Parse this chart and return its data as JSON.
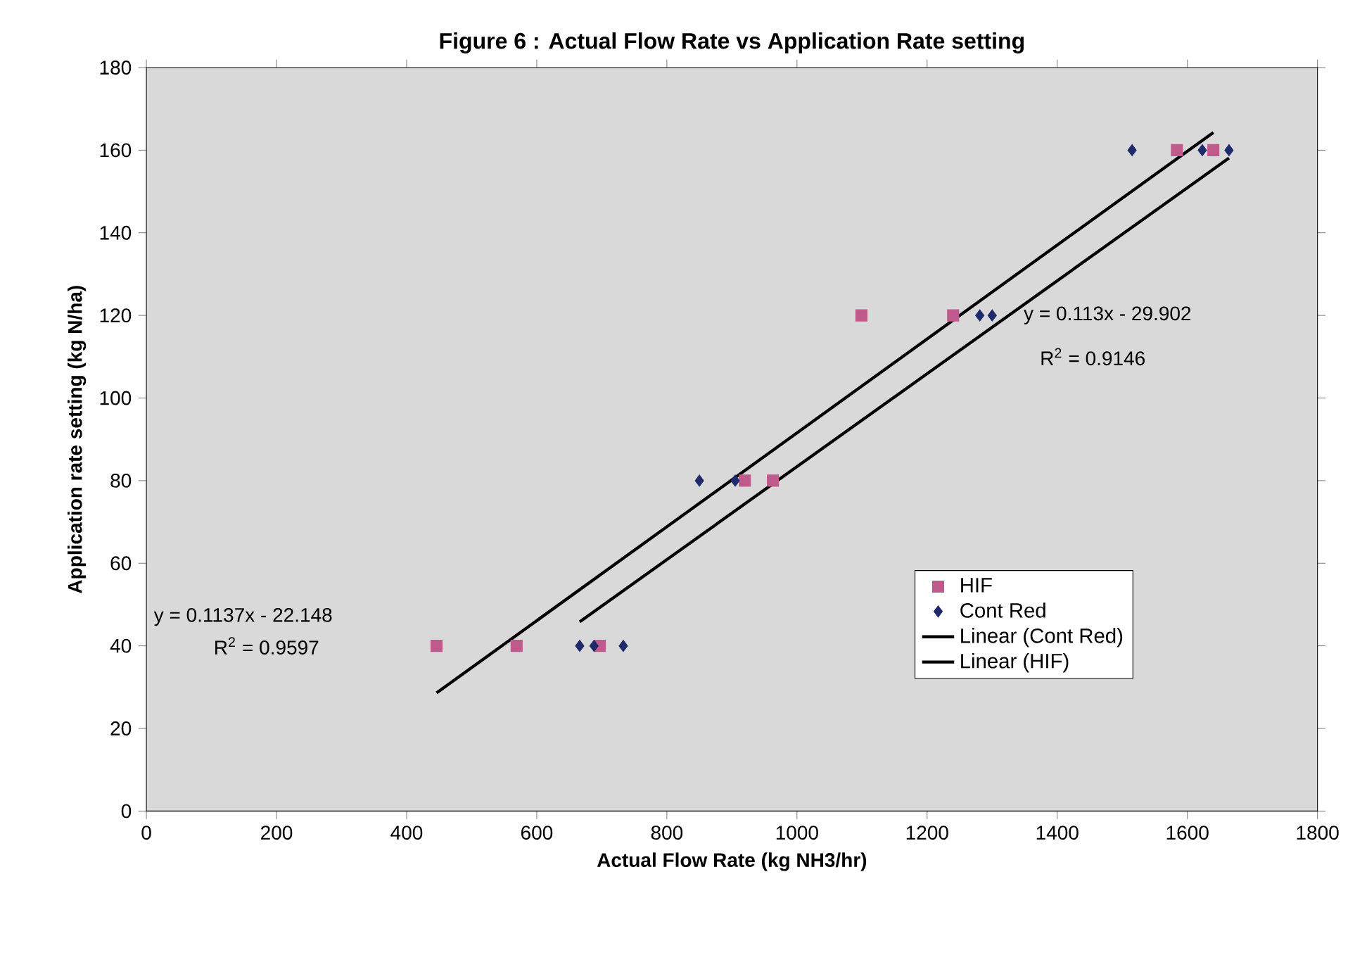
{
  "chart_data": {
    "type": "scatter",
    "title": "Figure 6 : Actual Flow Rate vs Application Rate setting",
    "xlabel": "Actual Flow Rate (kg NH3/hr)",
    "ylabel": "Application rate setting (kg N/ha)",
    "xlim": [
      0,
      1800
    ],
    "xticks": [
      0,
      200,
      400,
      600,
      800,
      1000,
      1200,
      1400,
      1600,
      1800
    ],
    "ylim": [
      0,
      180
    ],
    "yticks": [
      0,
      20,
      40,
      60,
      80,
      100,
      120,
      140,
      160,
      180
    ],
    "grid": false,
    "legend": "right",
    "series": [
      {
        "name": "HIF",
        "marker": "square",
        "color": "#c05a8c",
        "x": [
          446,
          569,
          697,
          920,
          963,
          1099,
          1240,
          1584,
          1640
        ],
        "values": [
          40,
          40,
          40,
          80,
          80,
          120,
          120,
          160,
          160
        ]
      },
      {
        "name": "Cont Red",
        "marker": "diamond",
        "color": "#1f2a6b",
        "x": [
          666,
          688,
          733,
          850,
          905,
          1281,
          1300,
          1515,
          1623,
          1664
        ],
        "values": [
          40,
          40,
          40,
          80,
          80,
          120,
          120,
          160,
          160,
          160
        ]
      },
      {
        "name": "Linear (Cont Red)",
        "type": "line",
        "marker": "none",
        "line_style": "solid",
        "color": "#000000",
        "x": [
          666,
          1664
        ],
        "values": [
          45.8,
          158.1
        ]
      },
      {
        "name": "Linear (HIF)",
        "type": "line",
        "marker": "none",
        "line_style": "solid",
        "color": "#000000",
        "x": [
          446,
          1640
        ],
        "values": [
          28.6,
          164.3
        ]
      }
    ],
    "annotations": [
      "y = 0.1137x - 22.148",
      "R$^{2}$ = 0.9597",
      "y = 0.113x - 29.902",
      "R$^{2}$ = 0.9146"
    ]
  }
}
